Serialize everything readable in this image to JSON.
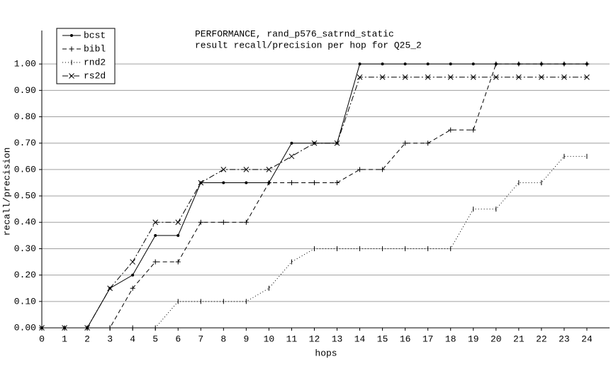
{
  "chart_data": {
    "type": "line",
    "title": "PERFORMANCE, rand_p576_satrnd_static",
    "subtitle": "result recall/precision per hop for Q25_2",
    "x_label": "hops",
    "y_label": "recall/precision",
    "x": [
      0,
      1,
      2,
      3,
      4,
      5,
      6,
      7,
      8,
      9,
      10,
      11,
      12,
      13,
      14,
      15,
      16,
      17,
      18,
      19,
      20,
      21,
      22,
      23,
      24
    ],
    "series": [
      {
        "name": "bcst",
        "color": "#000000",
        "style": "solid",
        "marker": "dot",
        "values": [
          0,
          0,
          0,
          0.15,
          0.2,
          0.35,
          0.35,
          0.55,
          0.55,
          0.55,
          0.55,
          0.7,
          0.7,
          0.7,
          1.0,
          1.0,
          1.0,
          1.0,
          1.0,
          1.0,
          1.0,
          1.0,
          1.0,
          1.0,
          1.0
        ]
      },
      {
        "name": "bibl",
        "color": "#000000",
        "style": "dashed",
        "marker": "plus",
        "values": [
          0,
          0,
          0,
          0,
          0.15,
          0.25,
          0.25,
          0.4,
          0.4,
          0.4,
          0.55,
          0.55,
          0.55,
          0.55,
          0.6,
          0.6,
          0.7,
          0.7,
          0.75,
          0.75,
          1.0,
          1.0,
          1.0,
          1.0,
          1.0
        ]
      },
      {
        "name": "rnd2",
        "color": "#000000",
        "style": "dotted",
        "marker": "bar",
        "values": [
          0,
          0,
          0,
          0,
          0,
          0,
          0.1,
          0.1,
          0.1,
          0.1,
          0.15,
          0.25,
          0.3,
          0.3,
          0.3,
          0.3,
          0.3,
          0.3,
          0.3,
          0.45,
          0.45,
          0.55,
          0.55,
          0.65,
          0.65
        ]
      },
      {
        "name": "rs2d",
        "color": "#000000",
        "style": "dashdot",
        "marker": "cross",
        "values": [
          0,
          0,
          0,
          0.15,
          0.25,
          0.4,
          0.4,
          0.55,
          0.6,
          0.6,
          0.6,
          0.65,
          0.7,
          0.7,
          0.95,
          0.95,
          0.95,
          0.95,
          0.95,
          0.95,
          0.95,
          0.95,
          0.95,
          0.95,
          0.95
        ]
      }
    ],
    "xlim": [
      0,
      25
    ],
    "xticks": [
      0,
      1,
      2,
      3,
      4,
      5,
      6,
      7,
      8,
      9,
      10,
      11,
      12,
      13,
      14,
      15,
      16,
      17,
      18,
      19,
      20,
      21,
      22,
      23,
      24
    ],
    "ylim": [
      0,
      1.1
    ],
    "yticks": [
      {
        "value": 0,
        "label": "0.00"
      },
      {
        "value": 0.1,
        "label": "0.10"
      },
      {
        "value": 0.2,
        "label": "0.20"
      },
      {
        "value": 0.3,
        "label": "0.30"
      },
      {
        "value": 0.4,
        "label": "0.40"
      },
      {
        "value": 0.5,
        "label": "0.50"
      },
      {
        "value": 0.6,
        "label": "0.60"
      },
      {
        "value": 0.7,
        "label": "0.70"
      },
      {
        "value": 0.8,
        "label": "0.80"
      },
      {
        "value": 0.9,
        "label": "0.90"
      },
      {
        "value": 1.0,
        "label": "1.00"
      }
    ],
    "grid": true,
    "legend": "top-left"
  }
}
